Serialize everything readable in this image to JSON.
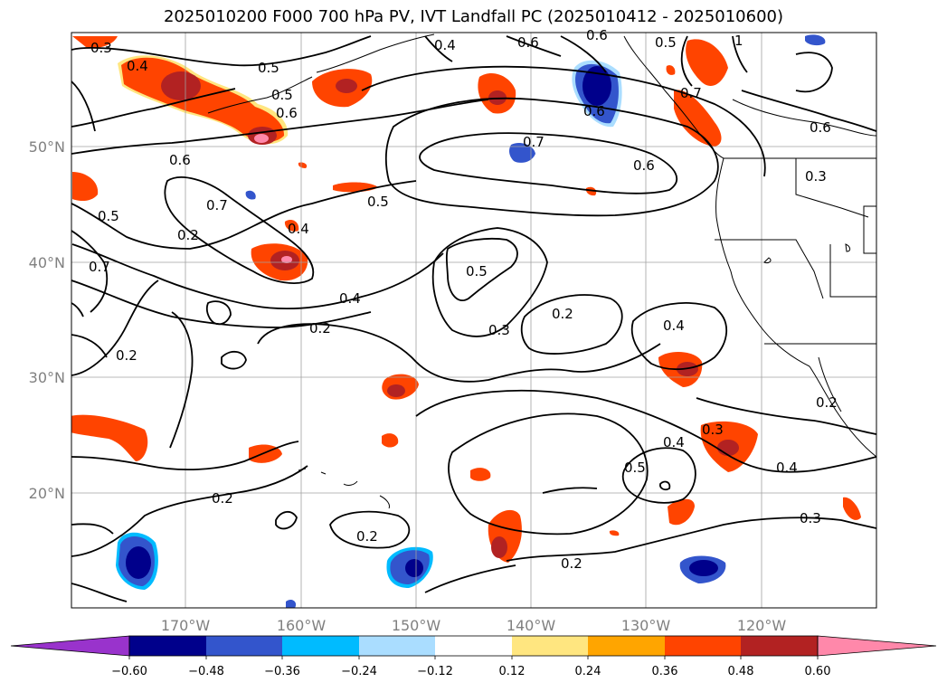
{
  "title": "2025010200 F000 700 hPa PV, IVT Landfall PC (2025010412 - 2025010600)",
  "axes": {
    "lat_labels": [
      "50°N",
      "40°N",
      "30°N",
      "20°N"
    ],
    "lon_labels": [
      "170°W",
      "160°W",
      "150°W",
      "140°W",
      "130°W",
      "120°W"
    ]
  },
  "contour_labels": [
    "0.3",
    "0.4",
    "0.5",
    "0.6",
    "0.5",
    "0.6",
    "0.5",
    "0.6",
    "0.7",
    "0.6",
    "0.7",
    "0.5",
    "0.7",
    "0.6",
    "0.6",
    "0.5",
    "0.7",
    "0.5",
    "0.4",
    "0.4",
    "0.2",
    "0.2",
    "0.3",
    "0.2",
    "0.4",
    "0.2",
    "0.4",
    "0.3",
    "0.5",
    "0.4",
    "0.2",
    "0.2",
    "0.2",
    "0.3",
    "0.4",
    "0.2",
    "0.3",
    "0.6",
    "1"
  ],
  "colorbar": {
    "ticks": [
      "−0.60",
      "−0.48",
      "−0.36",
      "−0.24",
      "−0.12",
      "0.12",
      "0.24",
      "0.36",
      "0.48",
      "0.60"
    ],
    "colors": [
      "#9933cc",
      "#00008b",
      "#3355cc",
      "#00bbff",
      "#aaddff",
      "#ffffff",
      "#ffe680",
      "#ffa500",
      "#ff4400",
      "#b22222",
      "#ff88aa",
      "#ff88aa"
    ],
    "extend": "both"
  },
  "colors": {
    "pos1": "#ffe680",
    "pos2": "#ffa500",
    "pos3": "#ff4400",
    "pos4": "#b22222",
    "pos5": "#ff88aa",
    "neg1": "#aaddff",
    "neg2": "#00bbff",
    "neg3": "#3355cc",
    "neg4": "#00008b"
  }
}
